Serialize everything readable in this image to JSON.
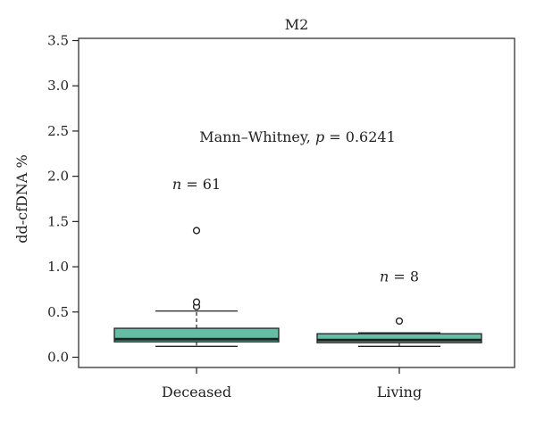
{
  "chart_data": {
    "type": "box",
    "title": "M2",
    "ylabel": "dd-cfDNA %",
    "xlabel": "",
    "ylim": [
      0,
      3.5
    ],
    "yticks": [
      0.0,
      0.5,
      1.0,
      1.5,
      2.0,
      2.5,
      3.0,
      3.5
    ],
    "ytick_labels": [
      "0.0",
      "0.5",
      "1.0",
      "1.5",
      "2.0",
      "2.5",
      "3.0",
      "3.5"
    ],
    "categories": [
      "Deceased",
      "Living"
    ],
    "boxes": [
      {
        "category": "Deceased",
        "whisker_low": 0.12,
        "q1": 0.17,
        "median": 0.2,
        "q3": 0.32,
        "whisker_high": 0.51,
        "outliers": [
          0.56,
          0.61,
          1.4
        ],
        "n_label_prefix": "n",
        "n_label_value": "= 61",
        "n_label_y": 1.86
      },
      {
        "category": "Living",
        "whisker_low": 0.12,
        "q1": 0.16,
        "median": 0.19,
        "q3": 0.26,
        "whisker_high": 0.27,
        "outliers": [
          0.4
        ],
        "n_label_prefix": "n",
        "n_label_value": "= 8",
        "n_label_y": 0.84
      }
    ],
    "annotation": {
      "prefix": "Mann–Whitney, ",
      "p_symbol": "p",
      "suffix": " = 0.6241",
      "y": 2.38
    },
    "colors": {
      "box_fill": "#66bda6",
      "stroke": "#222222"
    },
    "grid": false
  }
}
